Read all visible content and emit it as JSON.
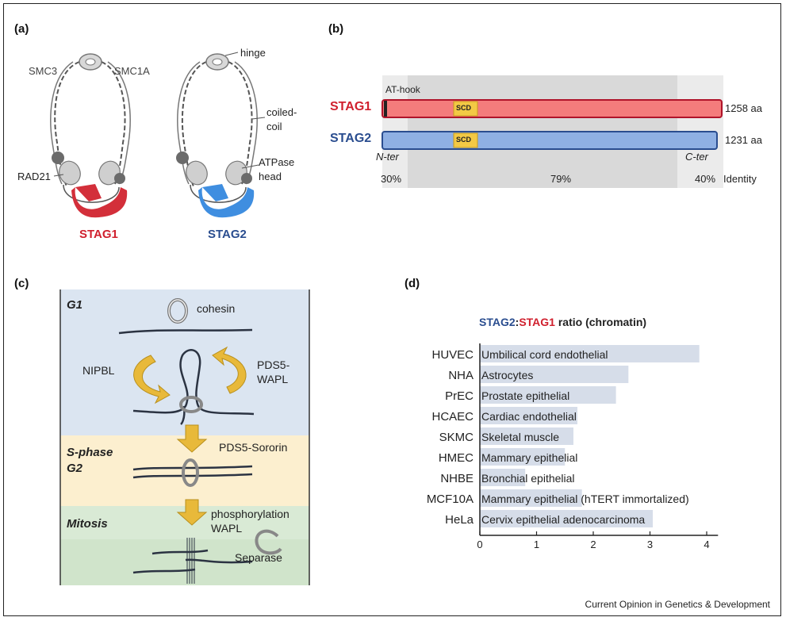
{
  "panel_a": {
    "label": "(a)",
    "smc3": "SMC3",
    "smc1a": "SMC1A",
    "hinge": "hinge",
    "coiled_coil_1": "coiled-",
    "coiled_coil_2": "coil",
    "atpase_1": "ATPase",
    "atpase_2": "head",
    "rad21": "RAD21",
    "stag1": "STAG1",
    "stag2": "STAG2",
    "colors": {
      "stag1": "#d32f3a",
      "stag2": "#3f8ee0",
      "head": "#cfcfcf",
      "rad21": "#6b6b6b"
    }
  },
  "panel_b": {
    "label": "(b)",
    "athook": "AT-hook",
    "stag1": "STAG1",
    "stag2": "STAG2",
    "scd": "SCD",
    "stag1_length": "1258 aa",
    "stag2_length": "1231 aa",
    "nter": "N-ter",
    "cter": "C-ter",
    "identity_n": "30%",
    "identity_mid": "79%",
    "identity_c": "40%",
    "identity_word": "Identity",
    "colors": {
      "stag1_fill": "#f47c7c",
      "stag1_border": "#b0142a",
      "stag2_fill": "#8fb0e3",
      "stag2_border": "#2a4d8f",
      "scd": "#f3c945"
    }
  },
  "panel_c": {
    "label": "(c)",
    "g1": "G1",
    "cohesin": "cohesin",
    "nipbl": "NIPBL",
    "pds5_wapl_1": "PDS5-",
    "pds5_wapl_2": "WAPL",
    "sphase": "S-phase",
    "g2": "G2",
    "pds5_sororin": "PDS5-Sororin",
    "mitosis": "Mitosis",
    "phos_1": "phosphorylation",
    "phos_2": "WAPL",
    "separase": "Separase",
    "colors": {
      "g1": "#dbe5f1",
      "sphase": "#fcefcf",
      "mitosis": "#d9ead5",
      "arrow": "#e8b93a"
    }
  },
  "panel_d": {
    "label": "(d)",
    "title_stag2": "STAG2",
    "title_colon": ":",
    "title_stag1": "STAG1",
    "title_rest": " ratio (chromatin)"
  },
  "chart_data": {
    "type": "bar",
    "orientation": "horizontal",
    "categories": [
      "HUVEC",
      "NHA",
      "PrEC",
      "HCAEC",
      "SKMC",
      "HMEC",
      "NHBE",
      "MCF10A",
      "HeLa"
    ],
    "annotations": [
      "Umbilical cord endothelial",
      "Astrocytes",
      "Prostate epithelial",
      "Cardiac endothelial",
      "Skeletal muscle",
      "Mammary epithelial",
      "Bronchial epithelial",
      "Mammary epithelial (hTERT immortalized)",
      "Cervix epithelial adenocarcinoma"
    ],
    "values": [
      3.87,
      2.62,
      2.4,
      1.72,
      1.65,
      1.5,
      0.8,
      1.8,
      3.05
    ],
    "xticks": [
      0,
      1,
      2,
      3,
      4
    ],
    "xlim": [
      0,
      4.2
    ],
    "bar_color": "#d6dde9"
  },
  "footer": "Current Opinion in Genetics & Development"
}
